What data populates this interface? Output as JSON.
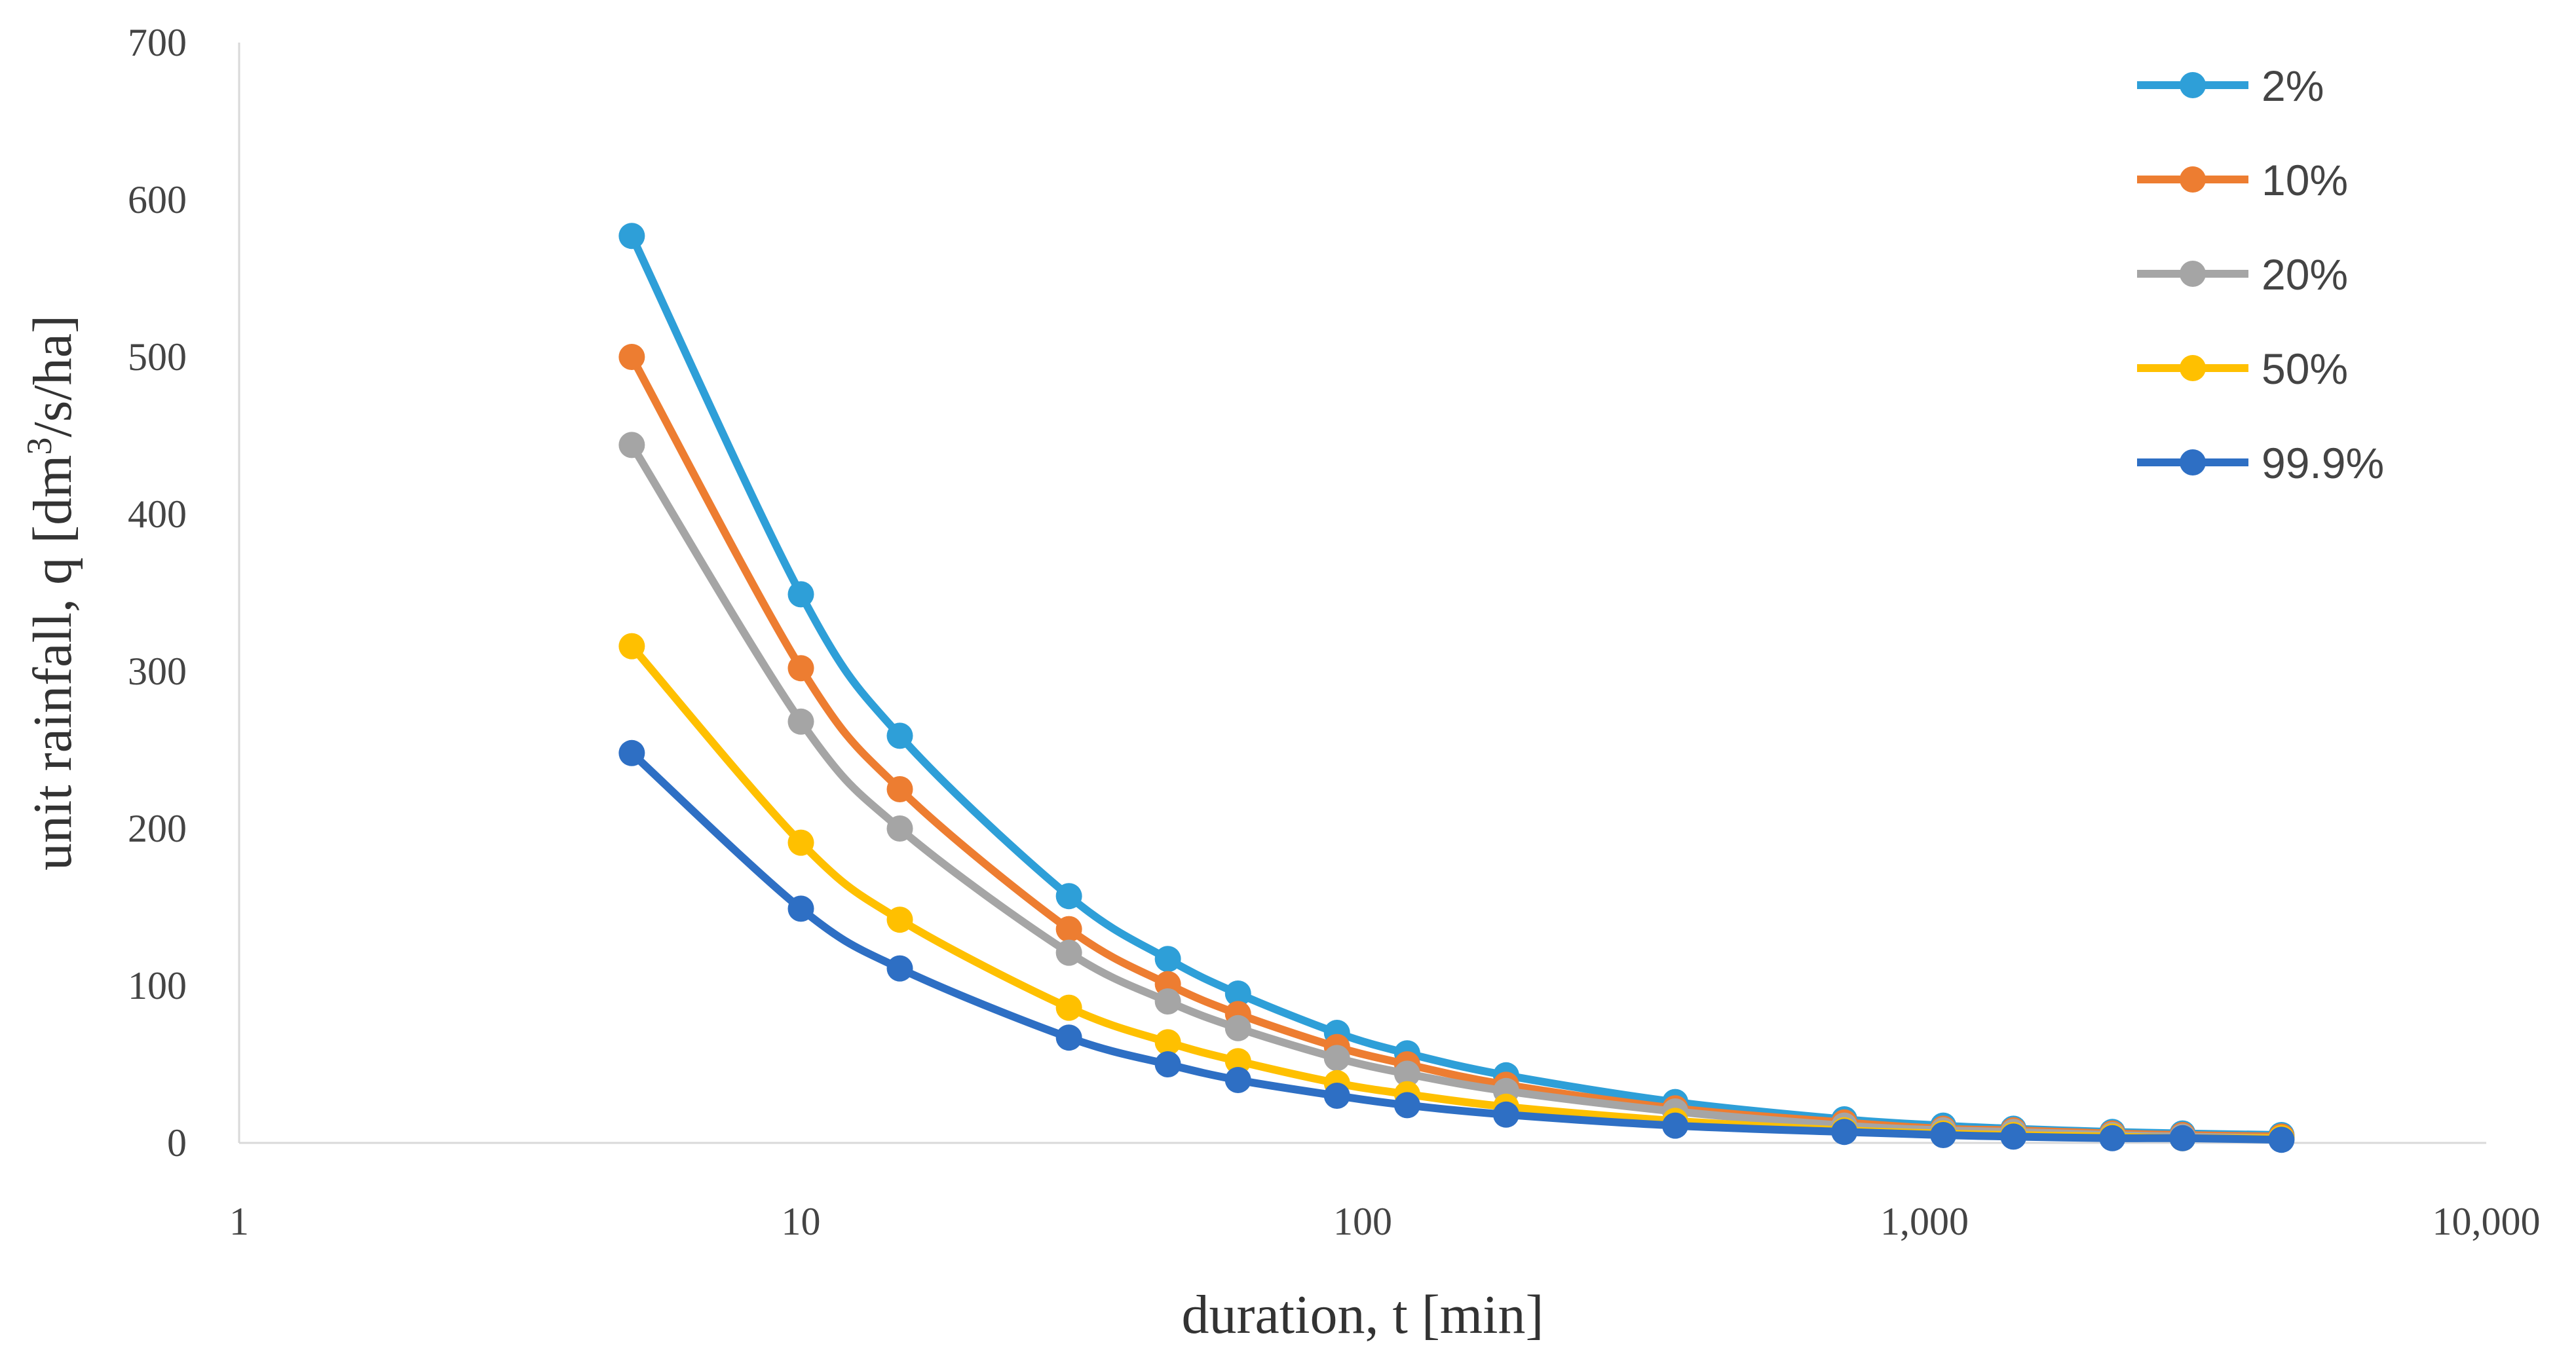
{
  "chart_data": {
    "type": "line",
    "title": "",
    "xlabel": "duration, t [min]",
    "ylabel_prefix": "unit rainfall, q [dm",
    "ylabel_sup": "3",
    "ylabel_suffix": "/s/ha]",
    "x_scale": "log",
    "xlim": [
      1,
      10000
    ],
    "ylim": [
      0,
      700
    ],
    "x_ticks": [
      1,
      10,
      100,
      1000,
      10000
    ],
    "x_tick_labels": [
      "1",
      "10",
      "100",
      "1,000",
      "10,000"
    ],
    "y_ticks": [
      0,
      100,
      200,
      300,
      400,
      500,
      600,
      700
    ],
    "y_tick_labels": [
      "0",
      "100",
      "200",
      "300",
      "400",
      "500",
      "600",
      "700"
    ],
    "grid": false,
    "legend_position": "top-right",
    "x": [
      5,
      10,
      15,
      30,
      45,
      60,
      90,
      120,
      180,
      360,
      720,
      1080,
      1440,
      2160,
      2880,
      4320
    ],
    "series": [
      {
        "name": "2%",
        "color": "#2E9FD8",
        "values": [
          577,
          349,
          259,
          157,
          117,
          95,
          70,
          57,
          43,
          26,
          15,
          11,
          9,
          7,
          6,
          5
        ]
      },
      {
        "name": "10%",
        "color": "#ED7D31",
        "values": [
          500,
          302,
          225,
          136,
          101,
          82,
          61,
          50,
          37,
          22,
          13,
          9,
          8,
          6,
          5,
          4
        ]
      },
      {
        "name": "20%",
        "color": "#A5A5A5",
        "values": [
          444,
          268,
          200,
          121,
          90,
          73,
          54,
          44,
          33,
          20,
          11,
          8,
          7,
          5,
          4,
          3
        ]
      },
      {
        "name": "50%",
        "color": "#FFC000",
        "values": [
          316,
          191,
          142,
          86,
          64,
          52,
          38,
          31,
          23,
          14,
          8,
          6,
          5,
          4,
          3,
          3
        ]
      },
      {
        "name": "99.9%",
        "color": "#2E6FC4",
        "values": [
          248,
          149,
          111,
          67,
          50,
          40,
          30,
          24,
          18,
          11,
          7,
          5,
          4,
          3,
          3,
          2
        ]
      }
    ]
  }
}
